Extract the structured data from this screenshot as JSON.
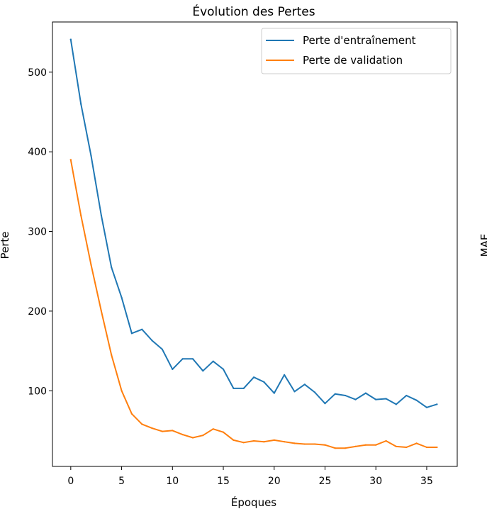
{
  "chart_data": {
    "type": "line",
    "title": "Évolution des Pertes",
    "xlabel": "Époques",
    "ylabel": "Perte",
    "xlim": [
      -1.8,
      38.0
    ],
    "ylim": [
      5,
      563
    ],
    "x_ticks": [
      0,
      5,
      10,
      15,
      20,
      25,
      30,
      35
    ],
    "y_ticks": [
      100,
      200,
      300,
      400,
      500
    ],
    "grid": false,
    "legend_position": "top-right",
    "x": [
      0,
      1,
      2,
      3,
      4,
      5,
      6,
      7,
      8,
      9,
      10,
      11,
      12,
      13,
      14,
      15,
      16,
      17,
      18,
      19,
      20,
      21,
      22,
      23,
      24,
      25,
      26,
      27,
      28,
      29,
      30,
      31,
      32,
      33,
      34,
      35,
      36
    ],
    "series": [
      {
        "name": "Perte d'entraînement",
        "color": "#1f77b4",
        "values": [
          541,
          460,
          395,
          320,
          255,
          217,
          172,
          177,
          163,
          152,
          127,
          140,
          140,
          125,
          137,
          127,
          103,
          103,
          117,
          111,
          97,
          120,
          99,
          108,
          98,
          84,
          96,
          94,
          89,
          97,
          89,
          90,
          83,
          94,
          88,
          79,
          83
        ]
      },
      {
        "name": "Perte de validation",
        "color": "#ff7f0e",
        "values": [
          390,
          320,
          258,
          200,
          145,
          100,
          71,
          58,
          53,
          49,
          50,
          45,
          41,
          44,
          52,
          48,
          38,
          35,
          37,
          36,
          38,
          36,
          34,
          33,
          33,
          32,
          28,
          28,
          30,
          32,
          32,
          37,
          30,
          29,
          34,
          29,
          29
        ]
      }
    ],
    "right_clipped_label": "MAE"
  }
}
